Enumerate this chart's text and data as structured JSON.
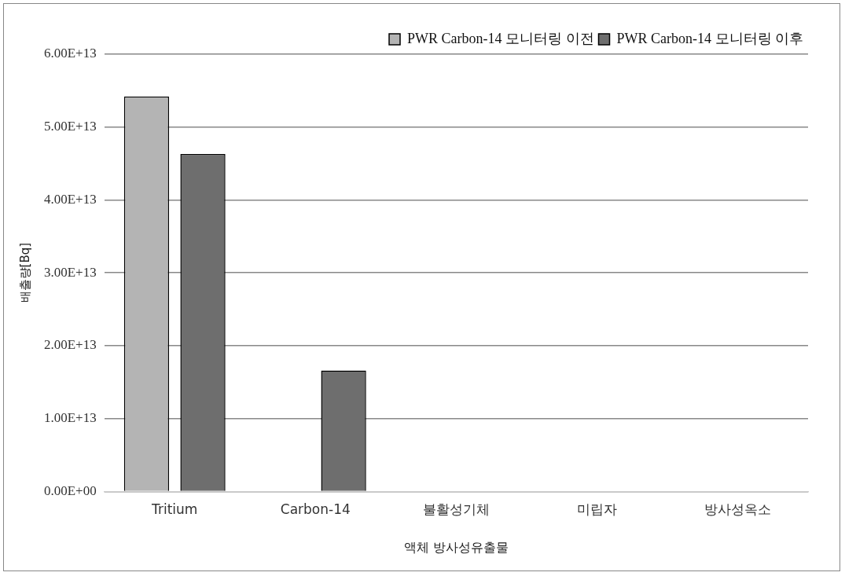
{
  "chart_data": {
    "type": "bar",
    "xlabel": "액체 방사성유출물",
    "ylabel": "배출량[Bq]",
    "categories": [
      "Tritium",
      "Carbon-14",
      "불활성기체",
      "미립자",
      "방사성옥소"
    ],
    "series": [
      {
        "name": "PWR Carbon-14 모니터링 이전",
        "color": "#b4b4b4",
        "values": [
          54200000000000.0,
          0,
          0,
          0,
          0
        ]
      },
      {
        "name": "PWR Carbon-14 모니터링 이후",
        "color": "#6e6e6e",
        "values": [
          46300000000000.0,
          16600000000000.0,
          0,
          0,
          0
        ]
      }
    ],
    "ylim": [
      0,
      60000000000000.0
    ],
    "yticks": [
      {
        "value": 0,
        "label": "0.00E+00"
      },
      {
        "value": 10000000000000.0,
        "label": "1.00E+13"
      },
      {
        "value": 20000000000000.0,
        "label": "2.00E+13"
      },
      {
        "value": 30000000000000.0,
        "label": "3.00E+13"
      },
      {
        "value": 40000000000000.0,
        "label": "4.00E+13"
      },
      {
        "value": 50000000000000.0,
        "label": "5.00E+13"
      },
      {
        "value": 60000000000000.0,
        "label": "6.00E+13"
      }
    ],
    "grid": "y",
    "legend": "top right"
  }
}
